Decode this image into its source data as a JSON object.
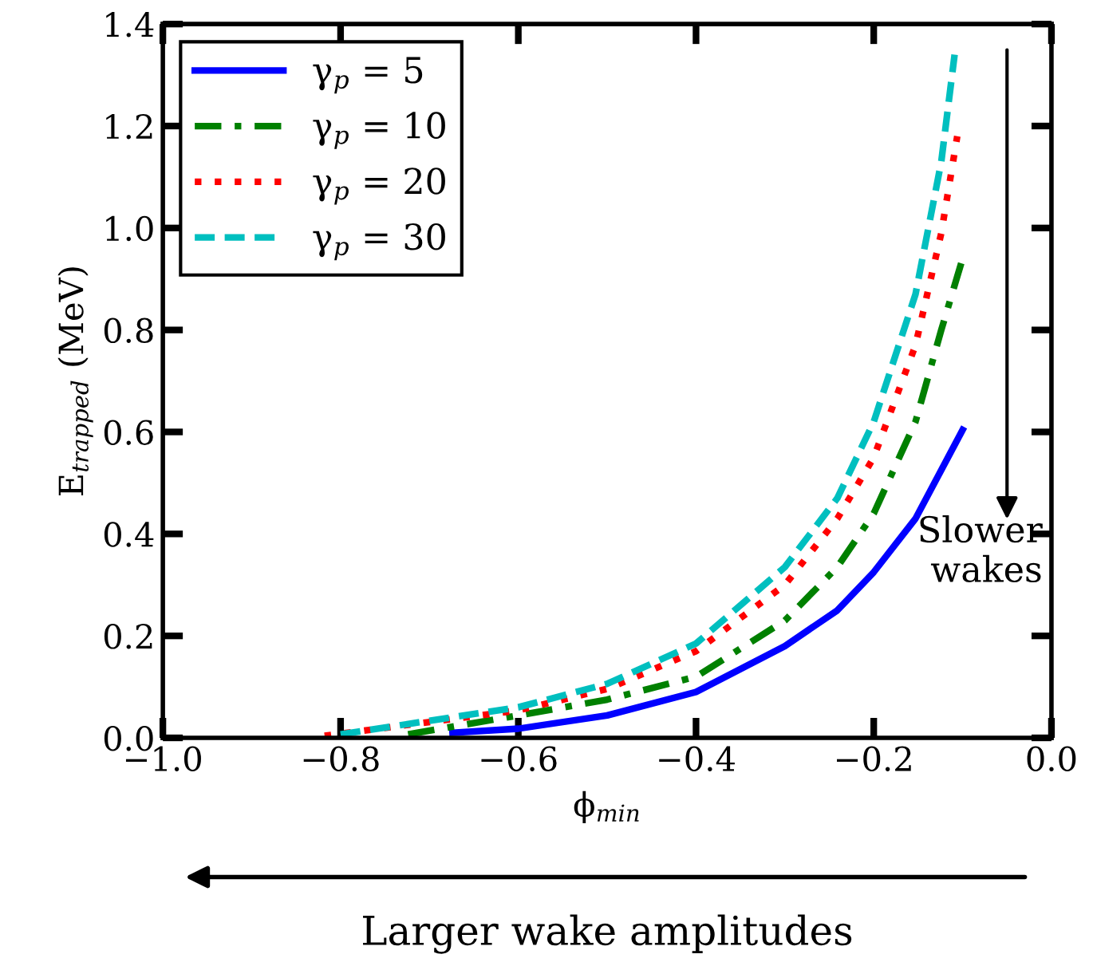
{
  "chart_data": {
    "type": "line",
    "xlabel": "ϕ$_{min}$",
    "ylabel": "E$_{trapped}$ (MeV)",
    "xlim": [
      -1.0,
      0.0
    ],
    "ylim": [
      0.0,
      1.4
    ],
    "xticks": [
      {
        "value": -1.0,
        "label": "−1.0"
      },
      {
        "value": -0.8,
        "label": "−0.8"
      },
      {
        "value": -0.6,
        "label": "−0.6"
      },
      {
        "value": -0.4,
        "label": "−0.4"
      },
      {
        "value": -0.2,
        "label": "−0.2"
      },
      {
        "value": 0.0,
        "label": "0.0"
      }
    ],
    "yticks": [
      {
        "value": 0.0,
        "label": "0.0"
      },
      0.2,
      0.4,
      0.6,
      0.8,
      {
        "value": 1.0,
        "label": "1.0"
      },
      1.2,
      1.4
    ],
    "grid": false,
    "legend": "top left",
    "marker": "none",
    "series": [
      {
        "name": "γ$_{p}$ = 5",
        "color": "#0000ff",
        "line_style": "solid",
        "x": [
          -0.674,
          -0.6,
          -0.5,
          -0.4,
          -0.3,
          -0.241,
          -0.2,
          -0.153,
          -0.1
        ],
        "values": [
          0.01,
          0.018,
          0.044,
          0.09,
          0.18,
          0.25,
          0.325,
          0.43,
          0.604
        ]
      },
      {
        "name": "γ$_{p}$ = 10",
        "color": "#008000",
        "line_style": "dashdot",
        "x": [
          -0.724,
          -0.6,
          -0.5,
          -0.4,
          -0.3,
          -0.241,
          -0.2,
          -0.153,
          -0.124,
          -0.1
        ],
        "values": [
          0.007,
          0.044,
          0.075,
          0.12,
          0.23,
          0.335,
          0.44,
          0.62,
          0.8,
          0.94
        ]
      },
      {
        "name": "γ$_{p}$ = 20",
        "color": "#ff0000",
        "line_style": "dotted",
        "x": [
          -0.818,
          -0.6,
          -0.5,
          -0.4,
          -0.3,
          -0.241,
          -0.2,
          -0.153,
          -0.124,
          -0.106
        ],
        "values": [
          0.004,
          0.054,
          0.096,
          0.17,
          0.3,
          0.43,
          0.55,
          0.77,
          0.99,
          1.18
        ]
      },
      {
        "name": "γ$_{p}$ = 30",
        "color": "#00bfbf",
        "line_style": "dashed",
        "x": [
          -0.8,
          -0.6,
          -0.5,
          -0.4,
          -0.3,
          -0.241,
          -0.2,
          -0.153,
          -0.124,
          -0.109
        ],
        "values": [
          0.007,
          0.06,
          0.106,
          0.185,
          0.335,
          0.47,
          0.62,
          0.87,
          1.13,
          1.34
        ]
      }
    ],
    "annotations": [
      "Slower\nwakes",
      "Larger wake amplitudes"
    ]
  }
}
